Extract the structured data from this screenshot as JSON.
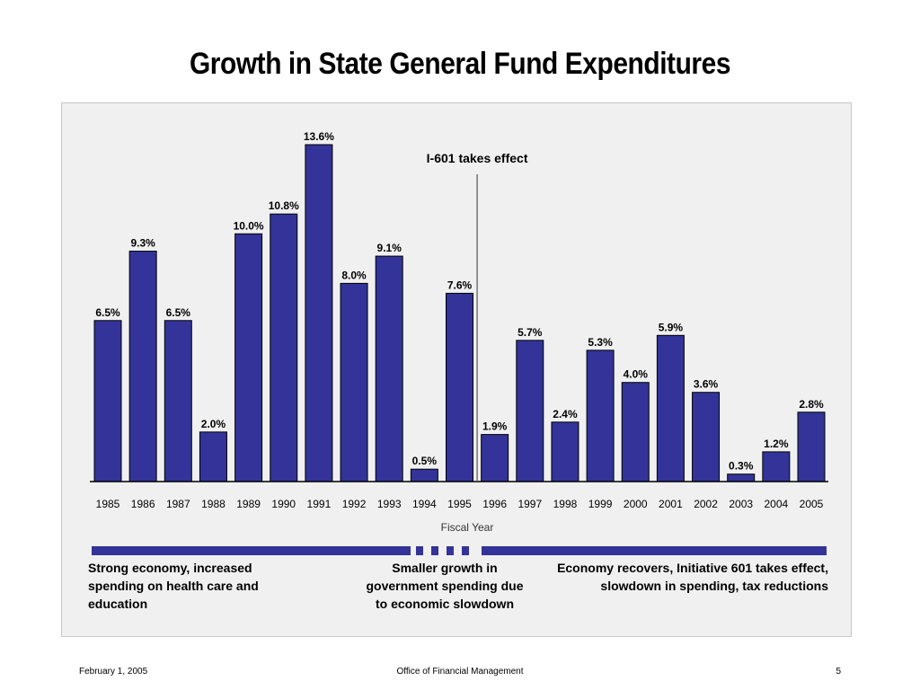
{
  "chart_data": {
    "type": "bar",
    "title": "Growth in State General Fund Expenditures",
    "xlabel": "Fiscal Year",
    "ylabel": "",
    "categories": [
      "1985",
      "1986",
      "1987",
      "1988",
      "1989",
      "1990",
      "1991",
      "1992",
      "1993",
      "1994",
      "1995",
      "1996",
      "1997",
      "1998",
      "1999",
      "2000",
      "2001",
      "2002",
      "2003",
      "2004",
      "2005"
    ],
    "values": [
      6.5,
      9.3,
      6.5,
      2.0,
      10.0,
      10.8,
      13.6,
      8.0,
      9.1,
      0.5,
      7.6,
      1.9,
      5.7,
      2.4,
      5.3,
      4.0,
      5.9,
      3.6,
      0.3,
      1.2,
      2.8
    ],
    "value_labels": [
      "6.5%",
      "9.3%",
      "6.5%",
      "2.0%",
      "10.0%",
      "10.8%",
      "13.6%",
      "8.0%",
      "9.1%",
      "0.5%",
      "7.6%",
      "1.9%",
      "5.7%",
      "2.4%",
      "5.3%",
      "4.0%",
      "5.9%",
      "3.6%",
      "0.3%",
      "1.2%",
      "2.8%"
    ],
    "ylim": [
      0,
      13.6
    ],
    "grid": false,
    "bar_color": "#333399",
    "annotation": {
      "text": "I-601 takes effect",
      "between": [
        "1995",
        "1996"
      ]
    },
    "periods": [
      {
        "text": "Strong economy, increased spending on health care and education",
        "from": "1985",
        "to": "1994",
        "style": "solid"
      },
      {
        "text": "Smaller growth in government spending due to economic slowdown",
        "from": "1994",
        "to": "1996",
        "style": "dashed"
      },
      {
        "text": "Economy recovers, Initiative 601 takes effect, slowdown in spending, tax reductions",
        "from": "1996",
        "to": "2005",
        "style": "solid"
      }
    ]
  },
  "footer": {
    "date": "February 1, 2005",
    "office": "Office of Financial Management",
    "page": "5"
  }
}
